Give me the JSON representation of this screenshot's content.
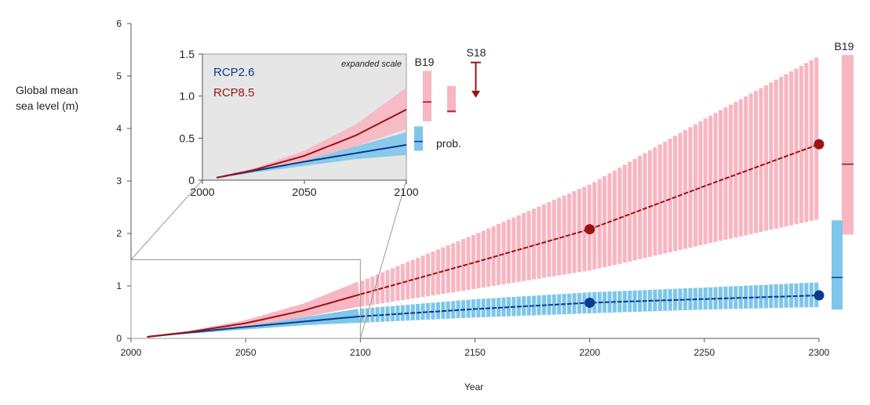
{
  "chart_data": {
    "type": "line",
    "ylabel_lines": [
      "Global mean",
      "sea level (m)"
    ],
    "xlabel": "Year",
    "xlim": [
      2000,
      2300
    ],
    "ylim": [
      0,
      6
    ],
    "x_ticks": [
      "2000",
      "2050",
      "2100",
      "2150",
      "2200",
      "2250",
      "2300"
    ],
    "y_ticks": [
      "0",
      "1",
      "2",
      "3",
      "4",
      "5",
      "6"
    ],
    "colors": {
      "rcp26": "#0b3a8c",
      "rcp26_band": "#7ec6ea",
      "rcp85": "#9b1212",
      "rcp85_band": "#f7b6c2",
      "grid": "#888888"
    },
    "series": [
      {
        "name": "RCP2.6",
        "median": {
          "x": [
            2007,
            2025,
            2050,
            2075,
            2100,
            2150,
            2200,
            2250,
            2300
          ],
          "y": [
            0.03,
            0.11,
            0.22,
            0.32,
            0.42,
            0.56,
            0.68,
            0.75,
            0.82
          ]
        },
        "band_low": [
          0.03,
          0.09,
          0.17,
          0.25,
          0.3,
          0.4,
          0.48,
          0.55,
          0.6
        ],
        "band_high": [
          0.03,
          0.13,
          0.27,
          0.4,
          0.57,
          0.75,
          0.88,
          0.97,
          1.07
        ],
        "markers": {
          "x": [
            2200,
            2300
          ],
          "y": [
            0.68,
            0.82
          ]
        }
      },
      {
        "name": "RCP8.5",
        "median": {
          "x": [
            2007,
            2025,
            2050,
            2075,
            2100,
            2150,
            2200,
            2250,
            2300
          ],
          "y": [
            0.03,
            0.12,
            0.29,
            0.53,
            0.84,
            1.45,
            2.08,
            2.9,
            3.7
          ]
        },
        "band_low": [
          0.03,
          0.1,
          0.23,
          0.4,
          0.61,
          0.95,
          1.3,
          1.8,
          2.28
        ],
        "band_high": [
          0.03,
          0.14,
          0.35,
          0.66,
          1.1,
          2.0,
          2.95,
          4.2,
          5.4
        ],
        "markers": {
          "x": [
            2200,
            2300
          ],
          "y": [
            2.08,
            3.7
          ]
        }
      }
    ],
    "b19_2300": {
      "label": "B19",
      "rcp26": {
        "low": 0.55,
        "median": 1.16,
        "high": 2.25
      },
      "rcp85": {
        "low": 1.98,
        "median": 3.32,
        "high": 5.4
      }
    },
    "inset": {
      "title": "expanded scale",
      "xlim": [
        2000,
        2100
      ],
      "ylim": [
        0,
        1.5
      ],
      "x_ticks": [
        "2000",
        "2050",
        "2100"
      ],
      "y_ticks": [
        "0",
        "0.5",
        "1.0",
        "1.5"
      ],
      "legend": [
        "RCP2.6",
        "RCP8.5"
      ],
      "b19": {
        "label": "B19",
        "rcp85": {
          "low": 0.7,
          "median": 0.93,
          "high": 1.3
        },
        "rcp26": {
          "low": 0.35,
          "median": 0.46,
          "high": 0.64
        }
      },
      "prob": {
        "label": "prob.",
        "rcp85": {
          "low": 0.8,
          "median": 0.82,
          "high": 1.12
        }
      },
      "s18": {
        "label": "S18",
        "top": 1.4,
        "bottom": 0.98
      }
    }
  }
}
